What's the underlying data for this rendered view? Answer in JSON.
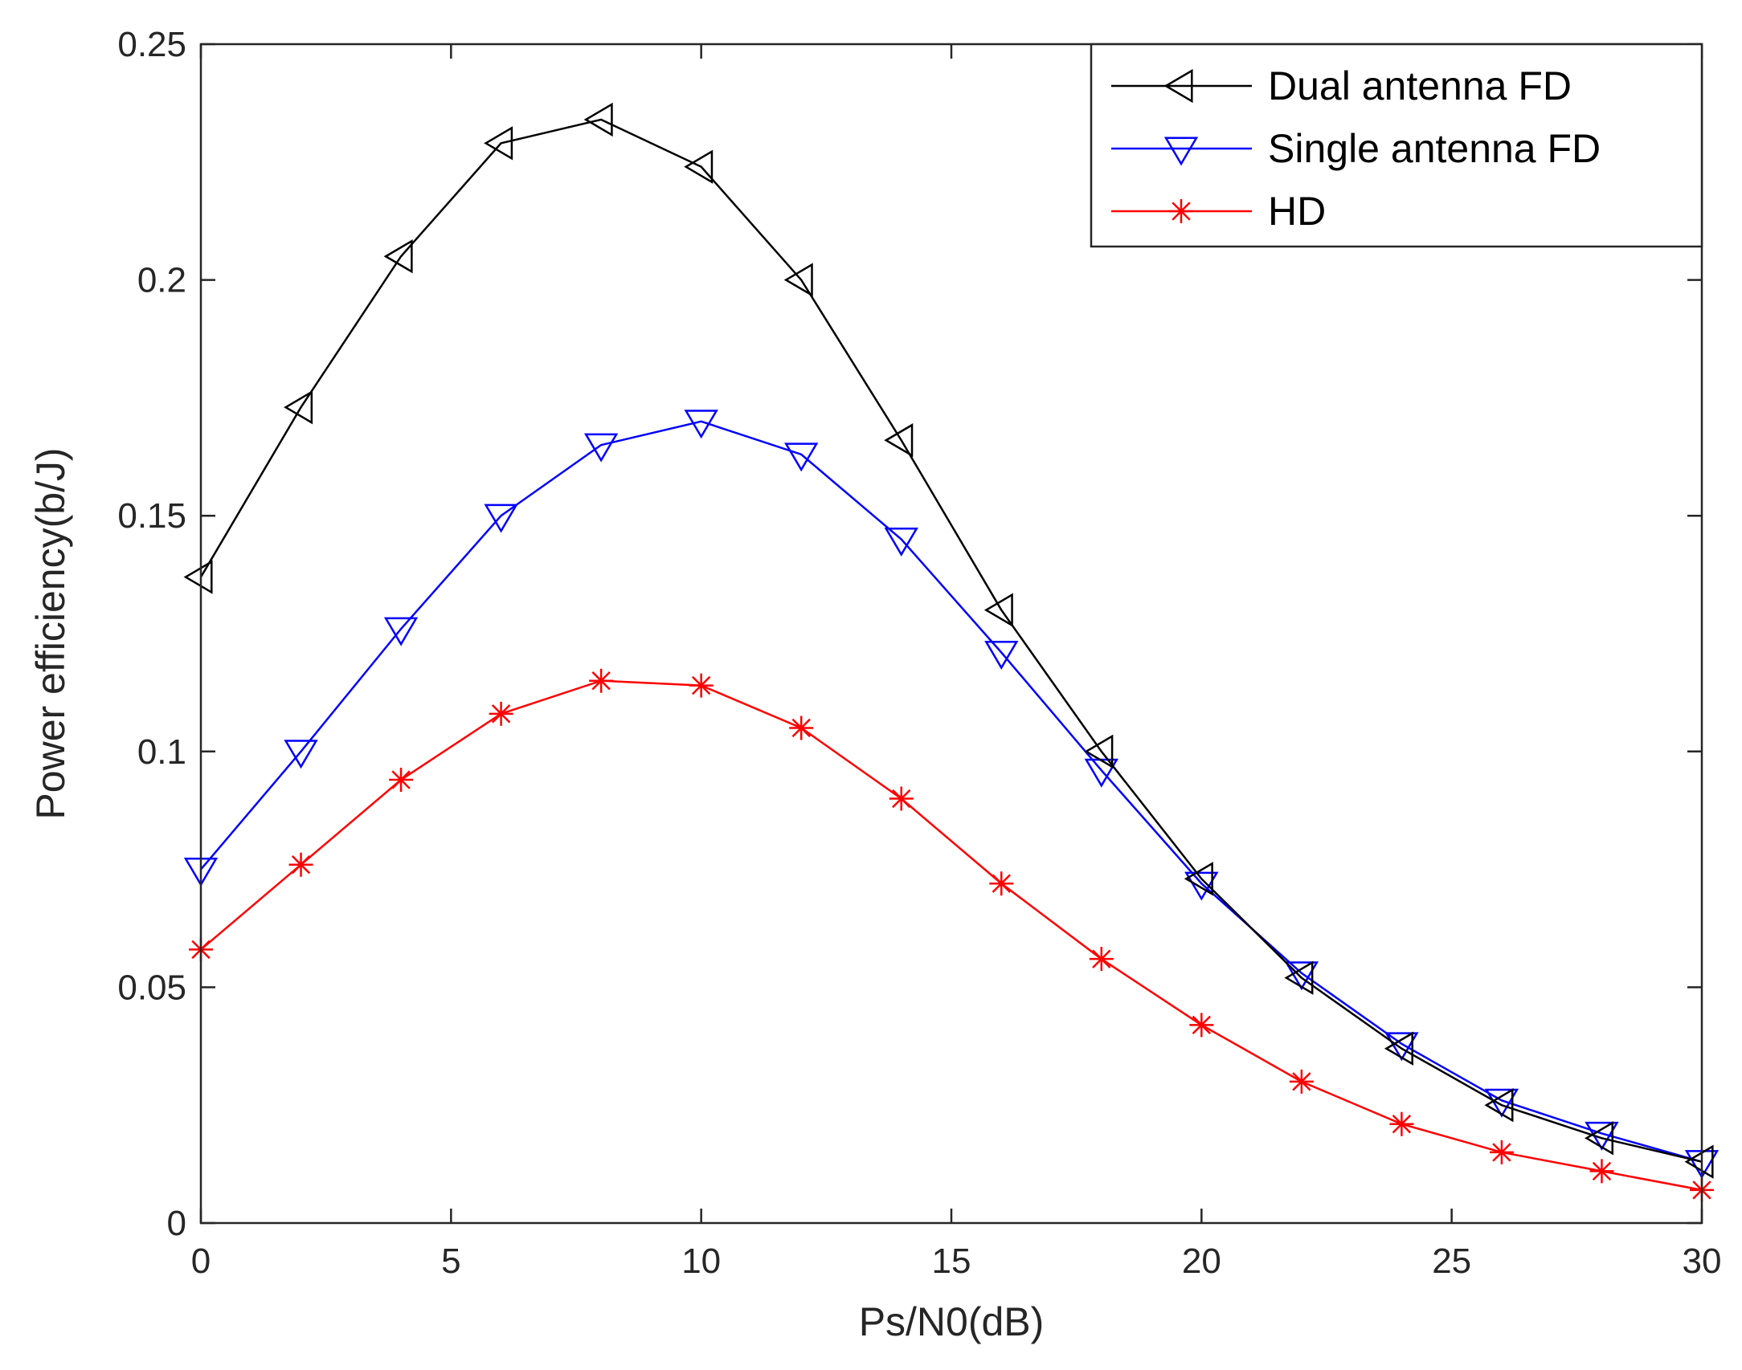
{
  "chart_data": {
    "type": "line",
    "title": "",
    "xlabel": "Ps/N0(dB)",
    "ylabel": "Power efficiency(b/J)",
    "xlim": [
      0,
      30
    ],
    "ylim": [
      0,
      0.25
    ],
    "xticks": [
      0,
      5,
      10,
      15,
      20,
      25,
      30
    ],
    "xtick_labels": [
      "0",
      "5",
      "10",
      "15",
      "20",
      "25",
      "30"
    ],
    "yticks": [
      0,
      0.05,
      0.1,
      0.15,
      0.2,
      0.25
    ],
    "ytick_labels": [
      "0",
      "0.05",
      "0.1",
      "0.15",
      "0.2",
      "0.25"
    ],
    "grid": false,
    "legend_position": "top-right",
    "x": [
      0,
      2,
      4,
      6,
      8,
      10,
      12,
      14,
      16,
      18,
      20,
      22,
      24,
      26,
      28,
      30
    ],
    "series": [
      {
        "name": "Dual antenna FD",
        "color": "#000000",
        "marker": "triangle-left",
        "values": [
          0.137,
          0.173,
          0.205,
          0.229,
          0.234,
          0.224,
          0.2,
          0.166,
          0.13,
          0.1,
          0.073,
          0.052,
          0.037,
          0.025,
          0.018,
          0.013
        ]
      },
      {
        "name": " Single antenna FD",
        "color": "#0000ff",
        "marker": "triangle-down",
        "values": [
          0.075,
          0.1,
          0.126,
          0.15,
          0.165,
          0.17,
          0.163,
          0.145,
          0.121,
          0.096,
          0.072,
          0.053,
          0.038,
          0.026,
          0.019,
          0.013
        ]
      },
      {
        "name": "HD",
        "color": "#ff0000",
        "marker": "asterisk",
        "values": [
          0.058,
          0.076,
          0.094,
          0.108,
          0.115,
          0.114,
          0.105,
          0.09,
          0.072,
          0.056,
          0.042,
          0.03,
          0.021,
          0.015,
          0.011,
          0.007
        ]
      }
    ]
  }
}
